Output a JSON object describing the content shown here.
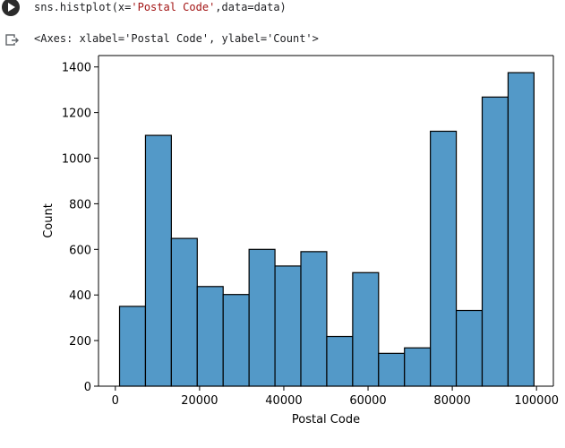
{
  "cell": {
    "code_prefix": "sns.histplot(x=",
    "code_string": "'Postal Code'",
    "code_suffix": ",data=data)",
    "output_text": "<Axes: xlabel='Postal Code', ylabel='Count'>",
    "run_icon": "play-icon",
    "output_icon": "output-arrow-icon"
  },
  "chart_data": {
    "type": "bar",
    "subtype": "histogram",
    "xlabel": "Postal Code",
    "ylabel": "Count",
    "xlim": [
      -4000,
      104000
    ],
    "ylim": [
      0,
      1450
    ],
    "xticks": [
      0,
      20000,
      40000,
      60000,
      80000,
      100000
    ],
    "xtick_labels": [
      "0",
      "20000",
      "40000",
      "60000",
      "80000",
      "100000"
    ],
    "yticks": [
      0,
      200,
      400,
      600,
      800,
      1000,
      1200,
      1400
    ],
    "ytick_labels": [
      "0",
      "200",
      "400",
      "600",
      "800",
      "1000",
      "1200",
      "1400"
    ],
    "bin_edges": [
      1000,
      7150,
      13300,
      19450,
      25600,
      31750,
      37900,
      44050,
      50200,
      56350,
      62500,
      68650,
      74800,
      80950,
      87100,
      93250,
      99400
    ],
    "values": [
      350,
      1100,
      648,
      437,
      402,
      600,
      527,
      590,
      218,
      498,
      144,
      168,
      1118,
      332,
      1268,
      1375
    ],
    "bar_fill": "#5399c8",
    "bar_edge": "#000000"
  }
}
